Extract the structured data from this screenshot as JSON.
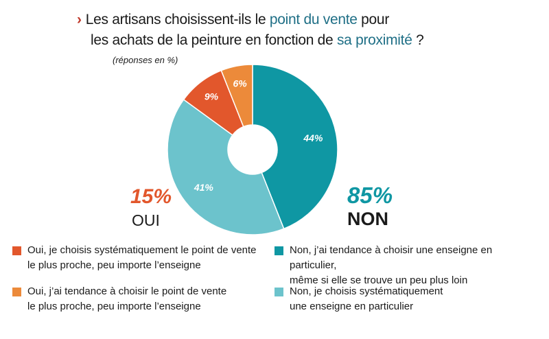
{
  "title": {
    "arrow": "›",
    "l1_a": "Les artisans choisissent-ils le ",
    "l1_hl": "point du vente",
    "l1_b": " pour",
    "l2_a": "les achats de la peinture en fonction de ",
    "l2_hl": "sa proximité",
    "l2_b": " ?"
  },
  "note": "(réponses en %)",
  "summary": {
    "oui_pct": "15%",
    "oui_label": "OUI",
    "oui_color": "#e2572c",
    "non_pct": "85%",
    "non_label": "NON",
    "non_color": "#0f97a3"
  },
  "chart_data": {
    "type": "pie",
    "donut": true,
    "unit": "%",
    "slices": [
      {
        "label": "Non, j'ai tendance à choisir une enseigne en particulier, même si elle se trouve un peu plus loin",
        "value": 44,
        "display": "44%",
        "color": "#0f97a3"
      },
      {
        "label": "Non, je choisis systématiquement une enseigne en particulier",
        "value": 41,
        "display": "41%",
        "color": "#6cc3cc"
      },
      {
        "label": "Oui, je choisis systématiquement le point de vente le plus proche, peu importe l'enseigne",
        "value": 9,
        "display": "9%",
        "color": "#e2572c"
      },
      {
        "label": "Oui, j'ai tendance à choisir le point de vente le plus proche, peu importe l'enseigne",
        "value": 6,
        "display": "6%",
        "color": "#ec8a3a"
      }
    ]
  },
  "legend": {
    "oui_sys": {
      "l1": "Oui, je choisis systématiquement le point de vente",
      "l2": "le plus proche, peu importe l’enseigne",
      "color": "#e2572c"
    },
    "oui_tend": {
      "l1": "Oui, j’ai tendance à choisir le point de vente",
      "l2": "le plus proche, peu importe l’enseigne",
      "color": "#ec8a3a"
    },
    "non_tend": {
      "l1": "Non, j’ai tendance à choisir une enseigne en particulier,",
      "l2": "même si elle se trouve un peu plus loin",
      "color": "#0f97a3"
    },
    "non_sys": {
      "l1": "Non, je choisis systématiquement",
      "l2": "une enseigne en particulier",
      "color": "#6cc3cc"
    }
  }
}
